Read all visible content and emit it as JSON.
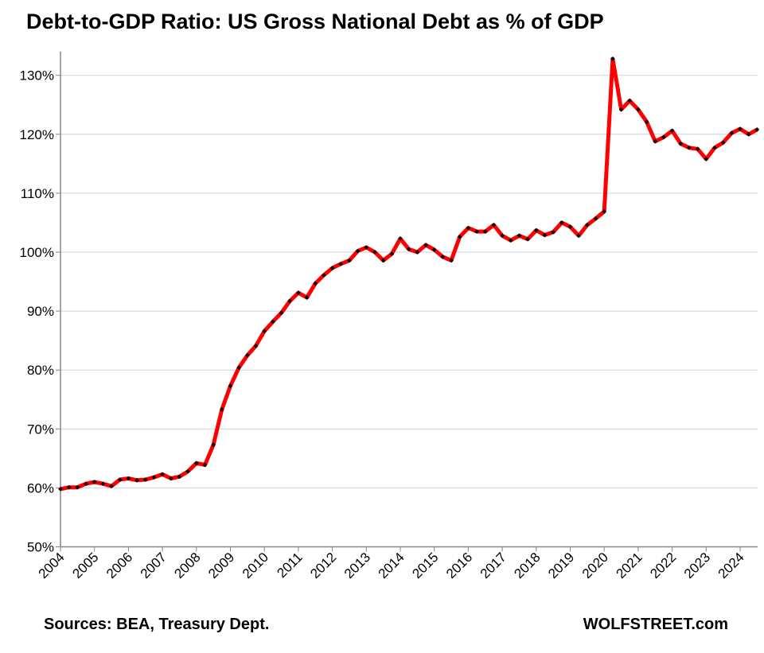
{
  "chart_data": {
    "type": "line",
    "title": "Debt-to-GDP Ratio: US Gross National Debt as % of GDP",
    "xlabel": "",
    "ylabel": "",
    "ylim": [
      50,
      130
    ],
    "yticks": [
      50,
      60,
      70,
      80,
      90,
      100,
      110,
      120,
      130
    ],
    "ytick_labels": [
      "50%",
      "60%",
      "70%",
      "80%",
      "90%",
      "100%",
      "110%",
      "120%",
      "130%"
    ],
    "xticks": [
      "2004",
      "2005",
      "2006",
      "2007",
      "2008",
      "2009",
      "2010",
      "2011",
      "2012",
      "2013",
      "2014",
      "2015",
      "2016",
      "2017",
      "2018",
      "2019",
      "2020",
      "2021",
      "2022",
      "2023",
      "2024"
    ],
    "grid": true,
    "legend": "none",
    "frequency": "quarterly, starting 2004 Q1",
    "series": [
      {
        "name": "Debt-to-GDP Ratio",
        "color": "#ff0000",
        "marker_color": "#000000",
        "values": [
          59.8,
          60.1,
          60.1,
          60.7,
          61.0,
          60.7,
          60.3,
          61.4,
          61.6,
          61.3,
          61.4,
          61.8,
          62.3,
          61.6,
          61.9,
          62.8,
          64.2,
          63.9,
          67.3,
          73.3,
          77.3,
          80.4,
          82.5,
          84.1,
          86.6,
          88.2,
          89.7,
          91.7,
          93.1,
          92.3,
          94.7,
          96.1,
          97.3,
          98.0,
          98.6,
          100.2,
          100.8,
          100.0,
          98.6,
          99.7,
          102.3,
          100.5,
          100.0,
          101.2,
          100.4,
          99.2,
          98.6,
          102.6,
          104.1,
          103.5,
          103.5,
          104.6,
          102.8,
          102.0,
          102.8,
          102.2,
          103.7,
          102.9,
          103.4,
          105.0,
          104.3,
          102.8,
          104.6,
          105.7,
          106.9,
          132.8,
          124.2,
          125.7,
          124.2,
          122.1,
          118.8,
          119.5,
          120.6,
          118.4,
          117.7,
          117.5,
          115.8,
          117.7,
          118.6,
          120.2,
          120.9,
          120.0,
          120.8
        ]
      }
    ]
  },
  "footer": {
    "source": "Sources: BEA, Treasury Dept.",
    "brand": "WOLFSTREET.com"
  }
}
